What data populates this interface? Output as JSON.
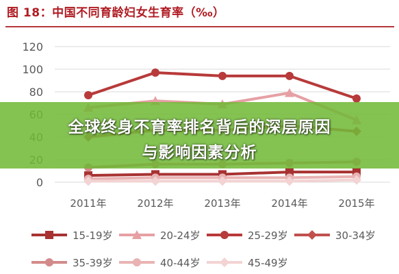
{
  "title": "图 18：中国不同育龄妇女生育率（‰）",
  "banner": {
    "line1": "全球终身不育率排名背后的深层原因",
    "line2": "与影响因素分析"
  },
  "colors": {
    "title": "#b01b22",
    "banner_bg": "#70b836",
    "axis_text": "#595959",
    "grid": "#d9d9d9"
  },
  "chart_data": {
    "type": "line",
    "title": "图 18：中国不同育龄妇女生育率（‰）",
    "xlabel": "",
    "ylabel": "",
    "categories": [
      "2011年",
      "2012年",
      "2013年",
      "2014年",
      "2015年"
    ],
    "ylim": [
      0,
      120
    ],
    "yticks": [
      0,
      20,
      40,
      60,
      80,
      100,
      120
    ],
    "grid": true,
    "legend_position": "bottom",
    "series": [
      {
        "name": "15-19岁",
        "values": [
          6,
          7,
          7,
          9,
          9
        ],
        "color": "#a83232",
        "marker": "square"
      },
      {
        "name": "20-24岁",
        "values": [
          66,
          72,
          69,
          79,
          55
        ],
        "color": "#e6a0a4",
        "marker": "triangle"
      },
      {
        "name": "25-29岁",
        "values": [
          77,
          97,
          94,
          94,
          74
        ],
        "color": "#b83a3a",
        "marker": "circle"
      },
      {
        "name": "30-34岁",
        "values": [
          40,
          46,
          46,
          50,
          45
        ],
        "color": "#c0504d",
        "marker": "diamond"
      },
      {
        "name": "35-39岁",
        "values": [
          13,
          16,
          16,
          17,
          18
        ],
        "color": "#d38a8a",
        "marker": "circle"
      },
      {
        "name": "40-44岁",
        "values": [
          3,
          4,
          4,
          4,
          5
        ],
        "color": "#e9b3b3",
        "marker": "circle"
      },
      {
        "name": "45-49岁",
        "values": [
          1,
          1,
          1,
          1,
          2
        ],
        "color": "#f3d3d3",
        "marker": "diamond"
      }
    ]
  }
}
